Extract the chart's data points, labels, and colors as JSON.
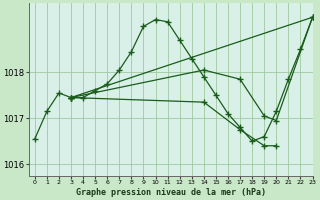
{
  "background_color": "#c8e8c8",
  "plot_bg_color": "#d8f0e8",
  "grid_color": "#a0c8a0",
  "line_color": "#1a5c1a",
  "title": "Graphe pression niveau de la mer (hPa)",
  "xlim": [
    -0.5,
    23
  ],
  "ylim": [
    1015.75,
    1019.5
  ],
  "yticks": [
    1016,
    1017,
    1018
  ],
  "xticks": [
    0,
    1,
    2,
    3,
    4,
    5,
    6,
    7,
    8,
    9,
    10,
    11,
    12,
    13,
    14,
    15,
    16,
    17,
    18,
    19,
    20,
    21,
    22,
    23
  ],
  "series": [
    {
      "x": [
        0,
        1,
        2,
        3,
        4,
        5,
        6,
        7,
        8,
        9,
        10,
        11,
        12,
        13,
        14,
        15,
        16,
        17,
        18,
        19,
        20,
        21,
        22,
        23
      ],
      "y": [
        1016.55,
        1017.15,
        1017.55,
        1017.45,
        1017.45,
        1017.6,
        1017.75,
        1018.05,
        1018.45,
        1019.0,
        1019.15,
        1019.1,
        1018.7,
        1018.3,
        1017.9,
        1017.5,
        1017.1,
        1016.8,
        1016.5,
        1016.6,
        1017.15,
        1017.85,
        1018.5,
        1019.2
      ]
    },
    {
      "x": [
        3,
        23
      ],
      "y": [
        1017.45,
        1019.2
      ]
    },
    {
      "x": [
        3,
        14,
        17,
        19,
        20,
        23
      ],
      "y": [
        1017.45,
        1018.05,
        1017.85,
        1017.05,
        1016.95,
        1019.2
      ]
    },
    {
      "x": [
        3,
        14,
        17,
        19,
        20
      ],
      "y": [
        1017.45,
        1017.35,
        1016.75,
        1016.4,
        1016.4
      ]
    }
  ]
}
